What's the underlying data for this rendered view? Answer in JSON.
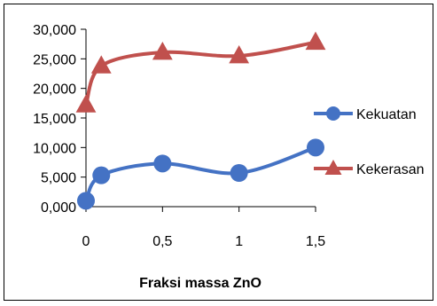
{
  "chart_data": {
    "type": "line",
    "title": "",
    "xlabel": "Fraksi massa ZnO",
    "ylabel": "",
    "x": [
      0,
      0.1,
      0.5,
      1,
      1.5
    ],
    "x_ticks": [
      {
        "value": 0,
        "label": "0"
      },
      {
        "value": 0.5,
        "label": "0,5"
      },
      {
        "value": 1,
        "label": "1"
      },
      {
        "value": 1.5,
        "label": "1,5"
      }
    ],
    "y_ticks": [
      {
        "value": 0,
        "label": "0,000"
      },
      {
        "value": 5,
        "label": "5,000"
      },
      {
        "value": 10,
        "label": "10,000"
      },
      {
        "value": 15,
        "label": "15,000"
      },
      {
        "value": 20,
        "label": "20,000"
      },
      {
        "value": 25,
        "label": "25,000"
      },
      {
        "value": 30,
        "label": "30,000"
      }
    ],
    "xlim": [
      0,
      1.5
    ],
    "ylim": [
      0,
      30
    ],
    "grid": false,
    "legend_position": "right",
    "series": [
      {
        "name": "Kekuatan",
        "values": [
          1.0,
          5.3,
          7.3,
          5.7,
          10.0
        ],
        "color": "#4472C4",
        "marker": "circle",
        "smooth": true
      },
      {
        "name": "Kekerasan",
        "values": [
          17.2,
          23.8,
          26.1,
          25.5,
          27.8
        ],
        "color": "#C0504D",
        "marker": "triangle",
        "smooth": true
      }
    ]
  }
}
